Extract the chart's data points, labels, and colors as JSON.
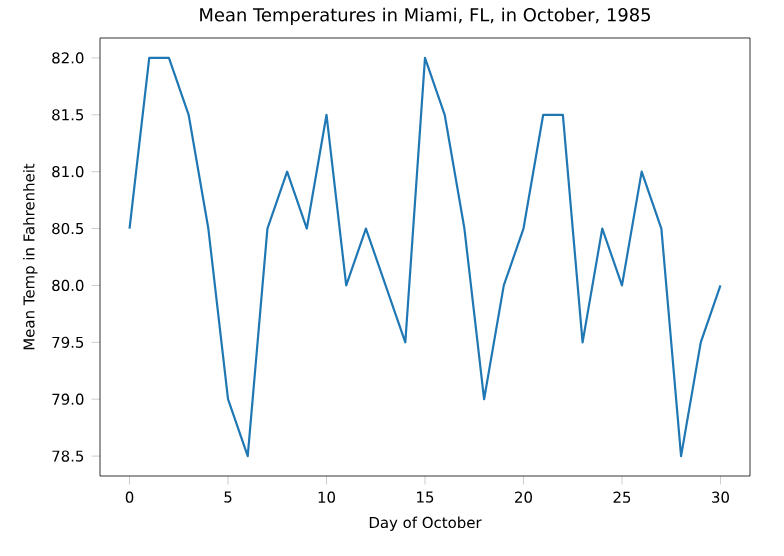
{
  "chart_data": {
    "type": "line",
    "title": "Mean Temperatures in Miami, FL, in October, 1985",
    "xlabel": "Day of October",
    "ylabel": "Mean Temp in Fahrenheit",
    "x": [
      0,
      1,
      2,
      3,
      4,
      5,
      6,
      7,
      8,
      9,
      10,
      11,
      12,
      13,
      14,
      15,
      16,
      17,
      18,
      19,
      20,
      21,
      22,
      23,
      24,
      25,
      26,
      27,
      28,
      29,
      30
    ],
    "series": [
      {
        "color": "#1f77b4",
        "values": [
          80.5,
          82.0,
          82.0,
          81.5,
          80.5,
          79.0,
          78.5,
          80.5,
          81.0,
          80.5,
          81.5,
          80.0,
          80.5,
          80.0,
          79.5,
          82.0,
          81.5,
          80.5,
          79.0,
          80.0,
          80.5,
          81.5,
          81.5,
          79.5,
          80.5,
          80.0,
          81.0,
          80.5,
          78.5,
          79.5,
          80.0
        ]
      }
    ],
    "xlim": [
      -1.5,
      31.5
    ],
    "ylim": [
      78.325,
      82.175
    ],
    "xticks": [
      0,
      5,
      10,
      15,
      20,
      25,
      30
    ],
    "yticks": [
      {
        "value": 78.5,
        "label": "78.5"
      },
      {
        "value": 79.0,
        "label": "79.0"
      },
      {
        "value": 79.5,
        "label": "79.5"
      },
      {
        "value": 80.0,
        "label": "80.0"
      },
      {
        "value": 80.5,
        "label": "80.5"
      },
      {
        "value": 81.0,
        "label": "81.0"
      },
      {
        "value": 81.5,
        "label": "81.5"
      },
      {
        "value": 82.0,
        "label": "82.0"
      }
    ],
    "grid": false,
    "marker": "none",
    "line_style": "solid"
  }
}
